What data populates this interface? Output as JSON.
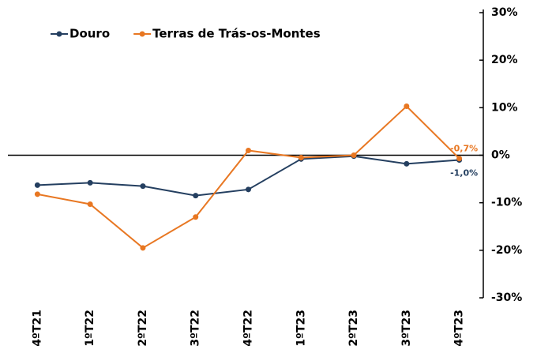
{
  "chart_data": {
    "type": "line",
    "categories": [
      "4ºT21",
      "1ºT22",
      "2ºT22",
      "3ºT22",
      "4ºT22",
      "1ºT23",
      "2ºT23",
      "3ºT23",
      "4ºT23"
    ],
    "series": [
      {
        "name": "Douro",
        "color": "#243f60",
        "values": [
          -6.3,
          -5.8,
          -6.5,
          -8.5,
          -7.2,
          -0.8,
          -0.2,
          -1.8,
          -1.0
        ],
        "value_labels": [
          null,
          null,
          null,
          null,
          null,
          null,
          null,
          null,
          "-1,0%"
        ]
      },
      {
        "name": "Terras de Trás-os-Montes",
        "color": "#e87722",
        "values": [
          -8.2,
          -10.3,
          -19.5,
          -13.0,
          1.0,
          -0.5,
          0.0,
          10.3,
          -0.7
        ],
        "value_labels": [
          null,
          null,
          null,
          null,
          null,
          null,
          null,
          null,
          "-0,7%"
        ]
      }
    ],
    "ylim": [
      -30,
      30
    ],
    "yticks": [
      {
        "value": -30,
        "label": "-30%"
      },
      {
        "value": -20,
        "label": "-20%"
      },
      {
        "value": -10,
        "label": "-10%"
      },
      {
        "value": 0,
        "label": "0%"
      },
      {
        "value": 10,
        "label": "10%"
      },
      {
        "value": 20,
        "label": "20%"
      },
      {
        "value": 30,
        "label": "30%"
      }
    ],
    "y_axis_side": "right",
    "legend": "top-left"
  }
}
